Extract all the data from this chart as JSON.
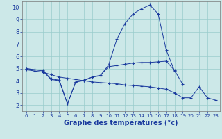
{
  "xlabel": "Graphe des températures (°c)",
  "bg_color": "#cce8e8",
  "line_color": "#1a3a9e",
  "grid_color": "#99cccc",
  "x": [
    0,
    1,
    2,
    3,
    4,
    5,
    6,
    7,
    8,
    9,
    10,
    11,
    12,
    13,
    14,
    15,
    16,
    17,
    18,
    19,
    20,
    21,
    22,
    23
  ],
  "line1": [
    5.0,
    4.9,
    4.8,
    4.1,
    4.0,
    2.1,
    3.9,
    4.0,
    4.3,
    4.4,
    5.3,
    7.4,
    8.7,
    9.5,
    9.9,
    10.2,
    9.5,
    6.5,
    4.8,
    null,
    null,
    null,
    null,
    null
  ],
  "line2": [
    5.0,
    4.9,
    4.85,
    4.15,
    4.05,
    2.1,
    3.9,
    4.05,
    4.3,
    4.45,
    5.15,
    5.25,
    5.35,
    5.45,
    5.5,
    5.5,
    5.55,
    5.6,
    4.85,
    3.7,
    null,
    null,
    null,
    null
  ],
  "line3": [
    4.9,
    4.8,
    4.7,
    4.5,
    4.3,
    4.2,
    4.1,
    4.0,
    3.9,
    3.85,
    3.8,
    3.75,
    3.65,
    3.6,
    3.55,
    3.5,
    3.4,
    3.3,
    3.0,
    2.6,
    2.6,
    3.5,
    2.6,
    2.4
  ],
  "ylim": [
    1.5,
    10.5
  ],
  "xlim": [
    -0.5,
    23.5
  ],
  "yticks": [
    2,
    3,
    4,
    5,
    6,
    7,
    8,
    9,
    10
  ],
  "xticks": [
    0,
    1,
    2,
    3,
    4,
    5,
    6,
    7,
    8,
    9,
    10,
    11,
    12,
    13,
    14,
    15,
    16,
    17,
    18,
    19,
    20,
    21,
    22,
    23
  ],
  "tick_fontsize": 6.0,
  "xlabel_fontsize": 7.0
}
